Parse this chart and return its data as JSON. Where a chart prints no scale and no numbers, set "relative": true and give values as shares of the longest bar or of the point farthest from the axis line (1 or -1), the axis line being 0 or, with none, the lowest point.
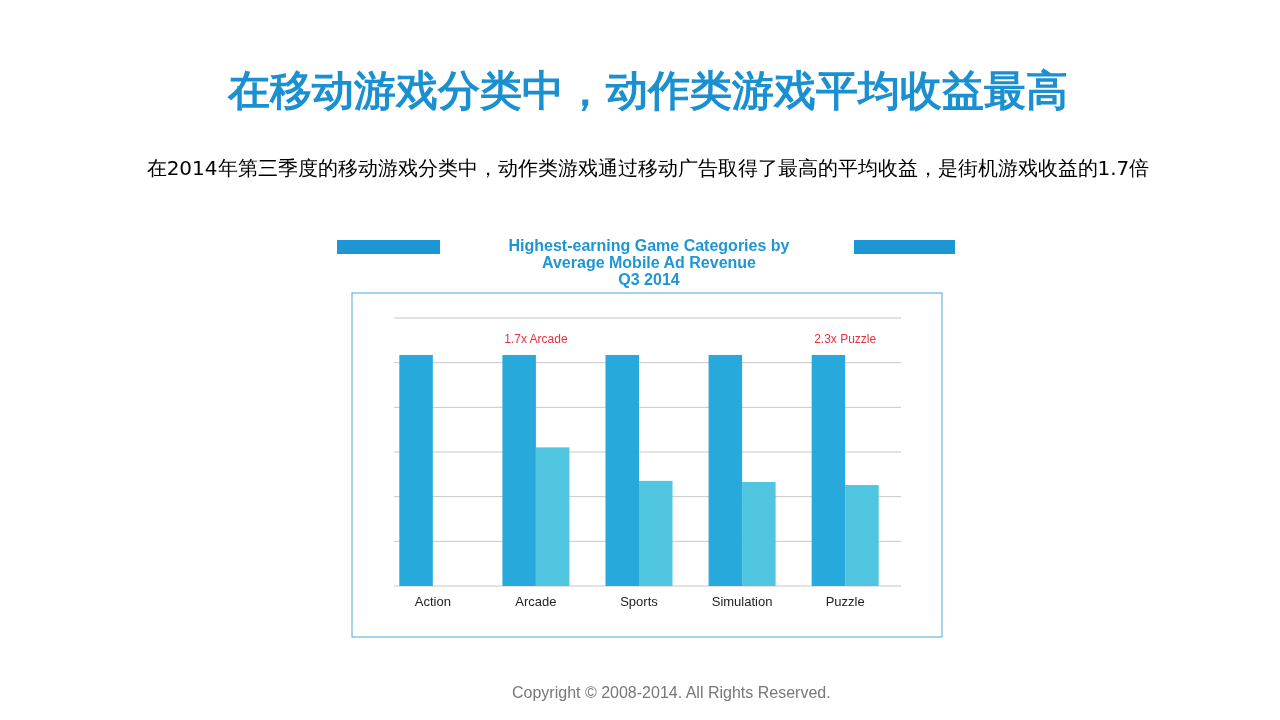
{
  "chart_data": {
    "type": "bar",
    "title": "在移动游戏分类中，动作类游戏平均收益最高",
    "subtitle": "在2014年第三季度的移动游戏分类中，动作类游戏通过移动广告取得了最高的平均收益，是街机游戏收益的1.7倍",
    "annotations": [
      "Highest-earning Game Categories by",
      "Average Mobile Ad Revenue",
      "Q3 2014",
      "1.7x Arcade",
      "2.3x Puzzle",
      "Copyright © 2008-2014. All Rights Reserved."
    ],
    "categories": [
      "Action",
      "Arcade",
      "Sports",
      "Simulation",
      "Puzzle"
    ],
    "relative": true,
    "series": [
      {
        "color": "#27a9dc",
        "values": [
          1,
          1,
          1,
          1,
          1
        ]
      },
      {
        "color": "#4fc5e0",
        "values": [
          null,
          0.6,
          0.455,
          0.45,
          0.437
        ]
      }
    ],
    "grid": "y"
  }
}
